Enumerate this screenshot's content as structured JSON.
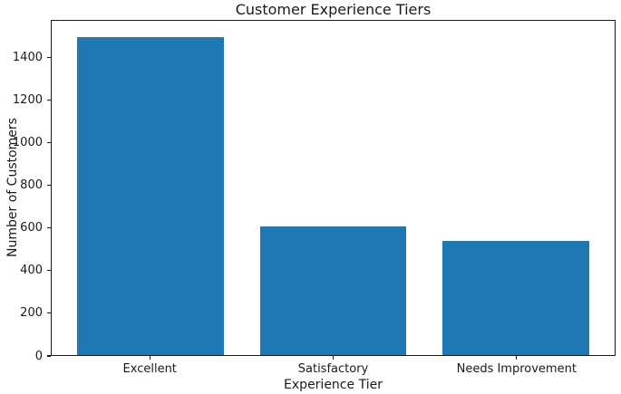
{
  "chart_data": {
    "type": "bar",
    "title": "Customer Experience Tiers",
    "xlabel": "Experience Tier",
    "ylabel": "Number of Customers",
    "categories": [
      "Excellent",
      "Satisfactory",
      "Needs Improvement"
    ],
    "values": [
      1500,
      605,
      540
    ],
    "yticks": [
      0,
      200,
      400,
      600,
      800,
      1000,
      1200,
      1400
    ],
    "ylim": [
      0,
      1575
    ],
    "xlim": [
      -0.54,
      2.54
    ],
    "bar_width": 0.8,
    "bar_color": "#1f77b4",
    "spine_color": "#1a1a1a",
    "grid": false,
    "legend": null
  }
}
